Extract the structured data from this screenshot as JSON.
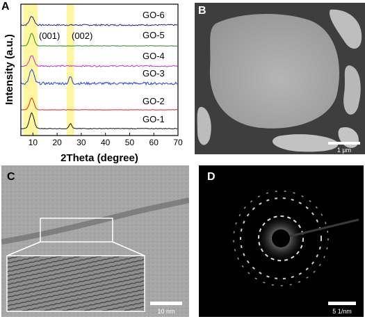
{
  "figure": {
    "panels": [
      {
        "letter": "A",
        "type": "xrd-chart"
      },
      {
        "letter": "B",
        "type": "tem-image",
        "scale_bar": "1 μm"
      },
      {
        "letter": "C",
        "type": "hrtem-image",
        "scale_bar": "10 nm"
      },
      {
        "letter": "D",
        "type": "saed-pattern",
        "scale_bar": "5 1/nm"
      }
    ]
  },
  "chart_data": {
    "type": "line",
    "xlabel": "2Theta (degree)",
    "ylabel": "Intensity (a.u.)",
    "xlim": [
      5,
      70
    ],
    "xticks": [
      10,
      20,
      30,
      40,
      50,
      60,
      70
    ],
    "highlight_bands": [
      {
        "range": [
          6,
          12
        ],
        "color": "#fff6a0"
      },
      {
        "range": [
          24,
          27
        ],
        "color": "#fff6a0"
      }
    ],
    "annotations": [
      "(001)",
      "(002)"
    ],
    "series": [
      {
        "name": "GO-6",
        "color": "#1f1f8f",
        "peak_001": 0.9,
        "peak_002": 0.0,
        "noise": 0.25
      },
      {
        "name": "GO-5",
        "color": "#1f8f1f",
        "peak_001": 1.3,
        "peak_002": 0.0,
        "noise": 0.08
      },
      {
        "name": "GO-4",
        "color": "#d02ad0",
        "peak_001": 1.1,
        "peak_002": 0.0,
        "noise": 0.25
      },
      {
        "name": "GO-3",
        "color": "#1f3fe0",
        "peak_001": 1.4,
        "peak_002": 0.7,
        "noise": 0.45
      },
      {
        "name": "GO-2",
        "color": "#e02020",
        "peak_001": 1.2,
        "peak_002": 0.0,
        "noise": 0.06
      },
      {
        "name": "GO-1",
        "color": "#111111",
        "peak_001": 1.6,
        "peak_002": 0.5,
        "noise": 0.12
      }
    ]
  }
}
